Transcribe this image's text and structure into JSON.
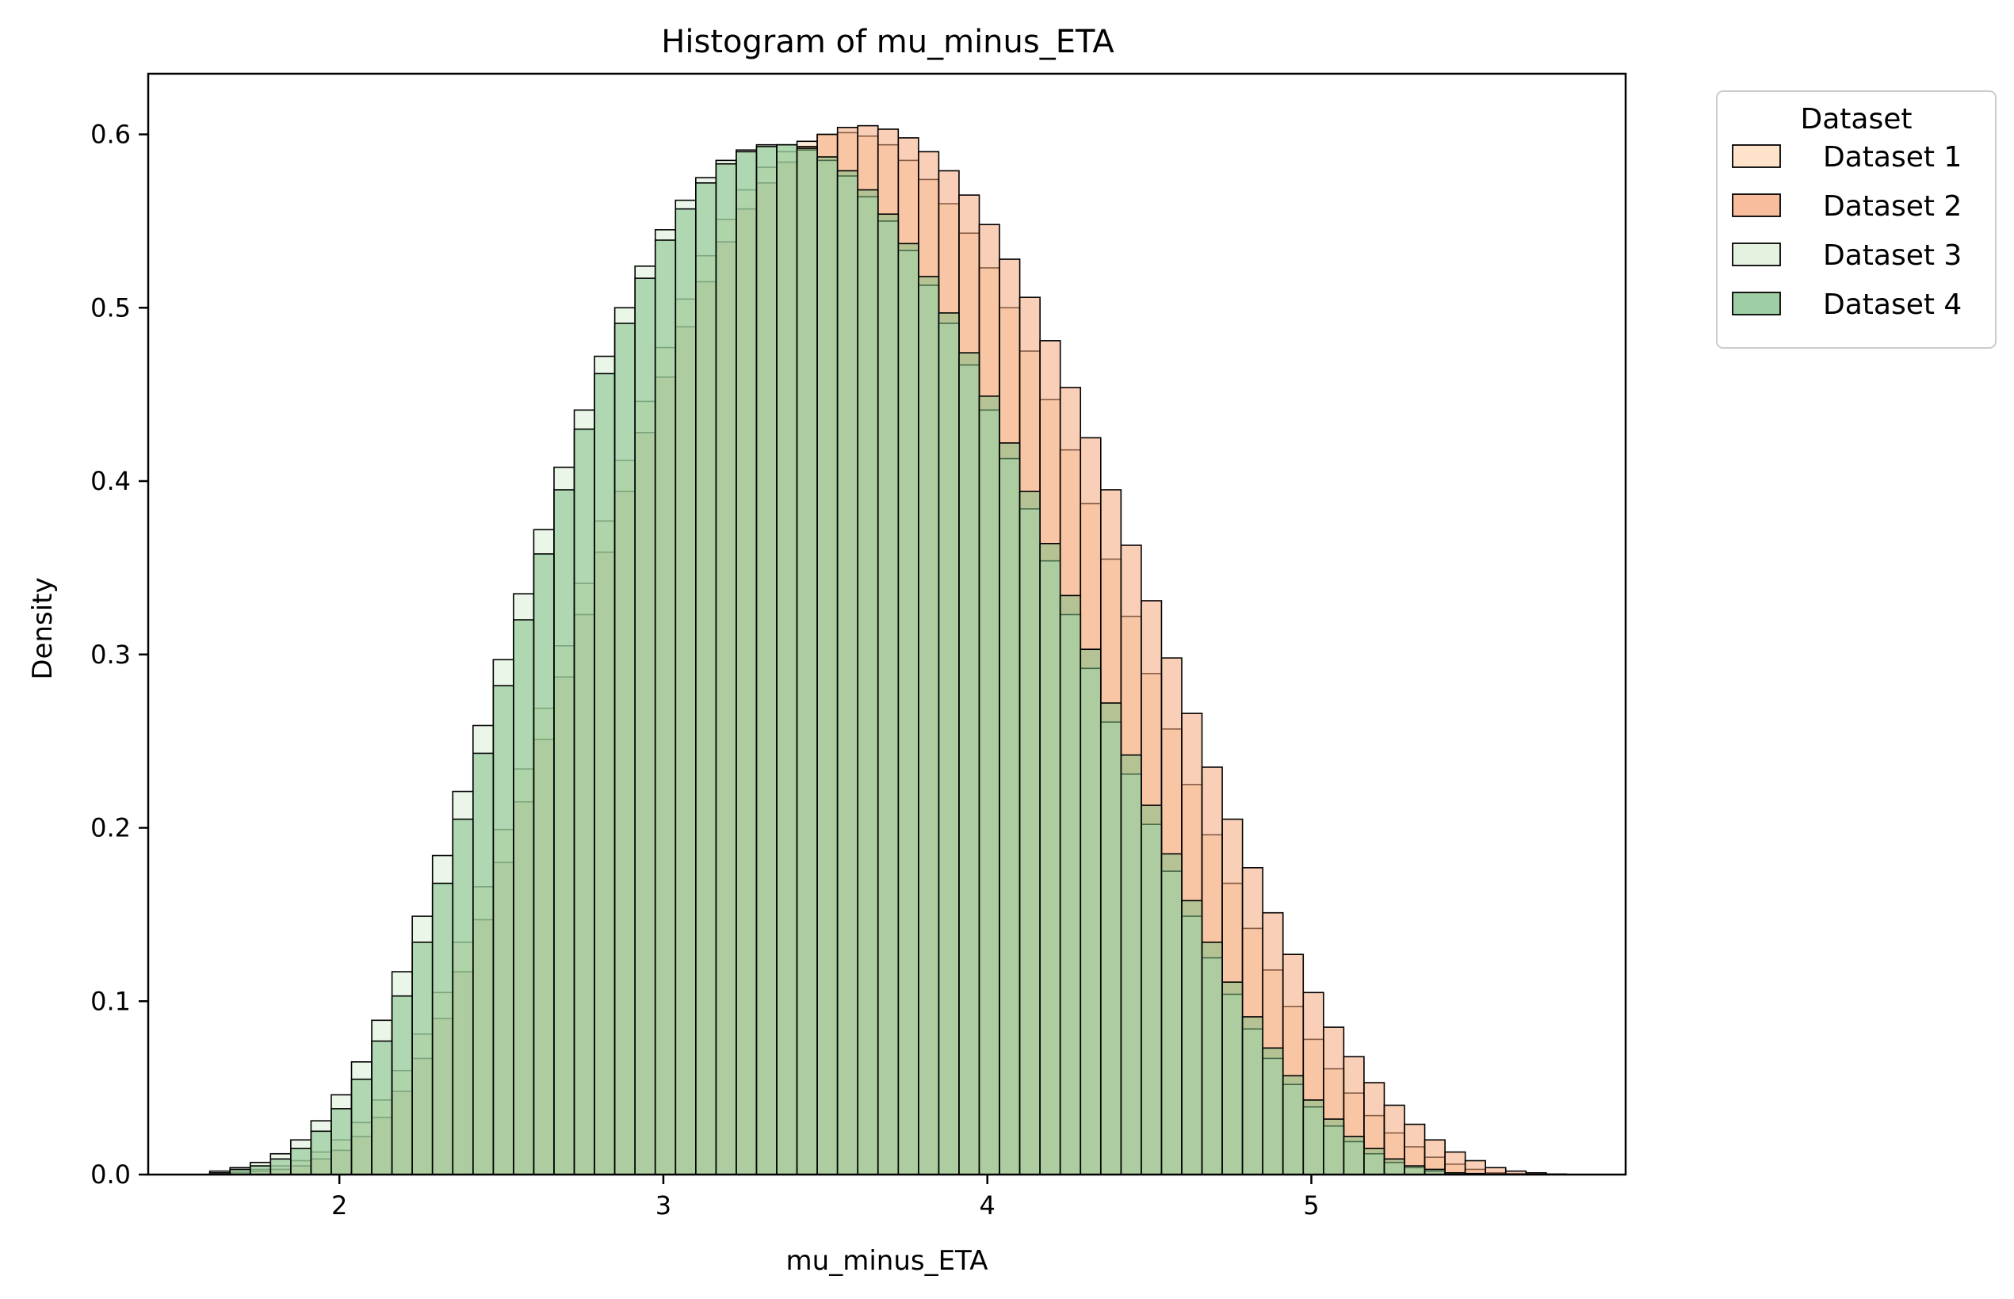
{
  "chart_data": {
    "type": "histogram",
    "title": "Histogram of mu_minus_ETA",
    "xlabel": "mu_minus_ETA",
    "ylabel": "Density",
    "xlim": [
      1.41,
      5.97
    ],
    "ylim": [
      0,
      0.635
    ],
    "x_ticks": [
      2,
      3,
      4,
      5
    ],
    "y_ticks": [
      0.0,
      0.1,
      0.2,
      0.3,
      0.4,
      0.5,
      0.6
    ],
    "x_tick_labels": [
      "2",
      "3",
      "4",
      "5"
    ],
    "y_tick_labels": [
      "0.0",
      "0.1",
      "0.2",
      "0.3",
      "0.4",
      "0.5",
      "0.6"
    ],
    "grid": false,
    "legend": {
      "title": "Dataset",
      "placement": "outside-top-right"
    },
    "bins": {
      "edges_start": 1.6,
      "bin_width": 0.0625,
      "count": 67
    },
    "series": [
      {
        "name": "Dataset 1",
        "color": "#fdd9b8",
        "densities": [
          0.001,
          0.002,
          0.003,
          0.005,
          0.008,
          0.013,
          0.02,
          0.03,
          0.043,
          0.06,
          0.081,
          0.105,
          0.134,
          0.166,
          0.199,
          0.234,
          0.269,
          0.305,
          0.341,
          0.377,
          0.412,
          0.446,
          0.477,
          0.505,
          0.53,
          0.551,
          0.568,
          0.581,
          0.59,
          0.596,
          0.6,
          0.601,
          0.599,
          0.594,
          0.585,
          0.574,
          0.56,
          0.543,
          0.523,
          0.5,
          0.475,
          0.447,
          0.418,
          0.387,
          0.355,
          0.322,
          0.289,
          0.257,
          0.225,
          0.196,
          0.168,
          0.142,
          0.118,
          0.097,
          0.078,
          0.061,
          0.047,
          0.034,
          0.024,
          0.016,
          0.01,
          0.006,
          0.003,
          0.001,
          0.0005,
          0.0002,
          0.0001
        ]
      },
      {
        "name": "Dataset 2",
        "color": "#f4a77c",
        "densities": [
          0.0,
          0.001,
          0.002,
          0.003,
          0.005,
          0.009,
          0.014,
          0.022,
          0.033,
          0.048,
          0.067,
          0.09,
          0.117,
          0.147,
          0.18,
          0.215,
          0.251,
          0.287,
          0.323,
          0.359,
          0.394,
          0.428,
          0.46,
          0.489,
          0.515,
          0.538,
          0.557,
          0.572,
          0.584,
          0.593,
          0.6,
          0.604,
          0.605,
          0.603,
          0.598,
          0.59,
          0.579,
          0.565,
          0.548,
          0.528,
          0.506,
          0.481,
          0.454,
          0.425,
          0.395,
          0.363,
          0.331,
          0.298,
          0.266,
          0.235,
          0.205,
          0.177,
          0.151,
          0.127,
          0.105,
          0.085,
          0.068,
          0.053,
          0.04,
          0.029,
          0.02,
          0.013,
          0.008,
          0.004,
          0.002,
          0.001,
          0.0003
        ]
      },
      {
        "name": "Dataset 3",
        "color": "#d9efd6",
        "densities": [
          0.002,
          0.004,
          0.007,
          0.012,
          0.02,
          0.031,
          0.046,
          0.065,
          0.089,
          0.117,
          0.149,
          0.184,
          0.221,
          0.259,
          0.297,
          0.335,
          0.372,
          0.408,
          0.441,
          0.472,
          0.5,
          0.524,
          0.545,
          0.562,
          0.575,
          0.585,
          0.591,
          0.594,
          0.594,
          0.591,
          0.585,
          0.576,
          0.564,
          0.55,
          0.533,
          0.513,
          0.491,
          0.467,
          0.441,
          0.413,
          0.384,
          0.354,
          0.323,
          0.292,
          0.261,
          0.231,
          0.202,
          0.175,
          0.149,
          0.125,
          0.104,
          0.084,
          0.067,
          0.052,
          0.039,
          0.028,
          0.019,
          0.012,
          0.007,
          0.004,
          0.002,
          0.001,
          0.0004,
          0.0002,
          0.0001,
          0.0,
          0.0
        ]
      },
      {
        "name": "Dataset 4",
        "color": "#7dbf85",
        "densities": [
          0.001,
          0.003,
          0.005,
          0.009,
          0.015,
          0.025,
          0.038,
          0.055,
          0.077,
          0.103,
          0.134,
          0.168,
          0.205,
          0.243,
          0.282,
          0.32,
          0.358,
          0.395,
          0.43,
          0.462,
          0.491,
          0.517,
          0.539,
          0.557,
          0.572,
          0.583,
          0.59,
          0.593,
          0.594,
          0.592,
          0.587,
          0.579,
          0.568,
          0.554,
          0.537,
          0.518,
          0.497,
          0.474,
          0.449,
          0.422,
          0.394,
          0.364,
          0.334,
          0.303,
          0.272,
          0.242,
          0.213,
          0.185,
          0.158,
          0.134,
          0.111,
          0.091,
          0.073,
          0.057,
          0.043,
          0.032,
          0.022,
          0.015,
          0.009,
          0.005,
          0.003,
          0.001,
          0.0006,
          0.0003,
          0.0001,
          0.0,
          0.0
        ]
      }
    ]
  }
}
